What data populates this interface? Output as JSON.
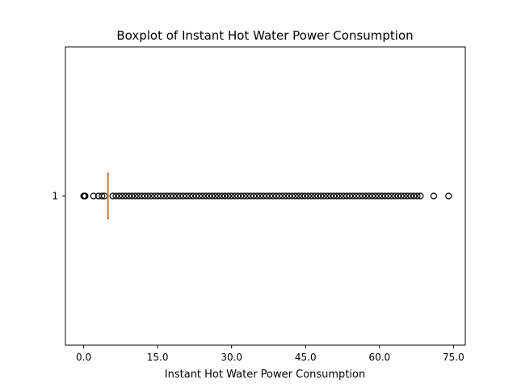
{
  "chart_data": {
    "type": "boxplot",
    "title": "Boxplot of Instant Hot Water Power Consumption",
    "xlabel": "Instant Hot Water Power Consumption",
    "ylabel": "",
    "orientation": "horizontal",
    "xlim": [
      -3.7,
      77.4
    ],
    "xticks": [
      0,
      15,
      30,
      45,
      60,
      75
    ],
    "xtick_labels": [
      "0.0",
      "15.0",
      "30.0",
      "45.0",
      "60.0",
      "75.0"
    ],
    "category_labels": [
      "1"
    ],
    "grid": false,
    "series": [
      {
        "category": "1",
        "whisker_low": 4.9,
        "q1": 4.9,
        "median": 4.9,
        "q3": 4.9,
        "whisker_high": 4.9,
        "fliers_low": [
          0,
          0.1,
          0.2,
          0.3,
          2.0,
          3.0,
          3.7,
          4.2
        ],
        "fliers_high_range": {
          "start": 5.9,
          "end": 68.9,
          "step": 0.65
        },
        "fliers_high_extra": [
          71.0,
          74.0
        ]
      }
    ],
    "colors": {
      "median": "#c8844a",
      "box": "#000000",
      "flier": "#000000",
      "frame": "#000000"
    }
  }
}
